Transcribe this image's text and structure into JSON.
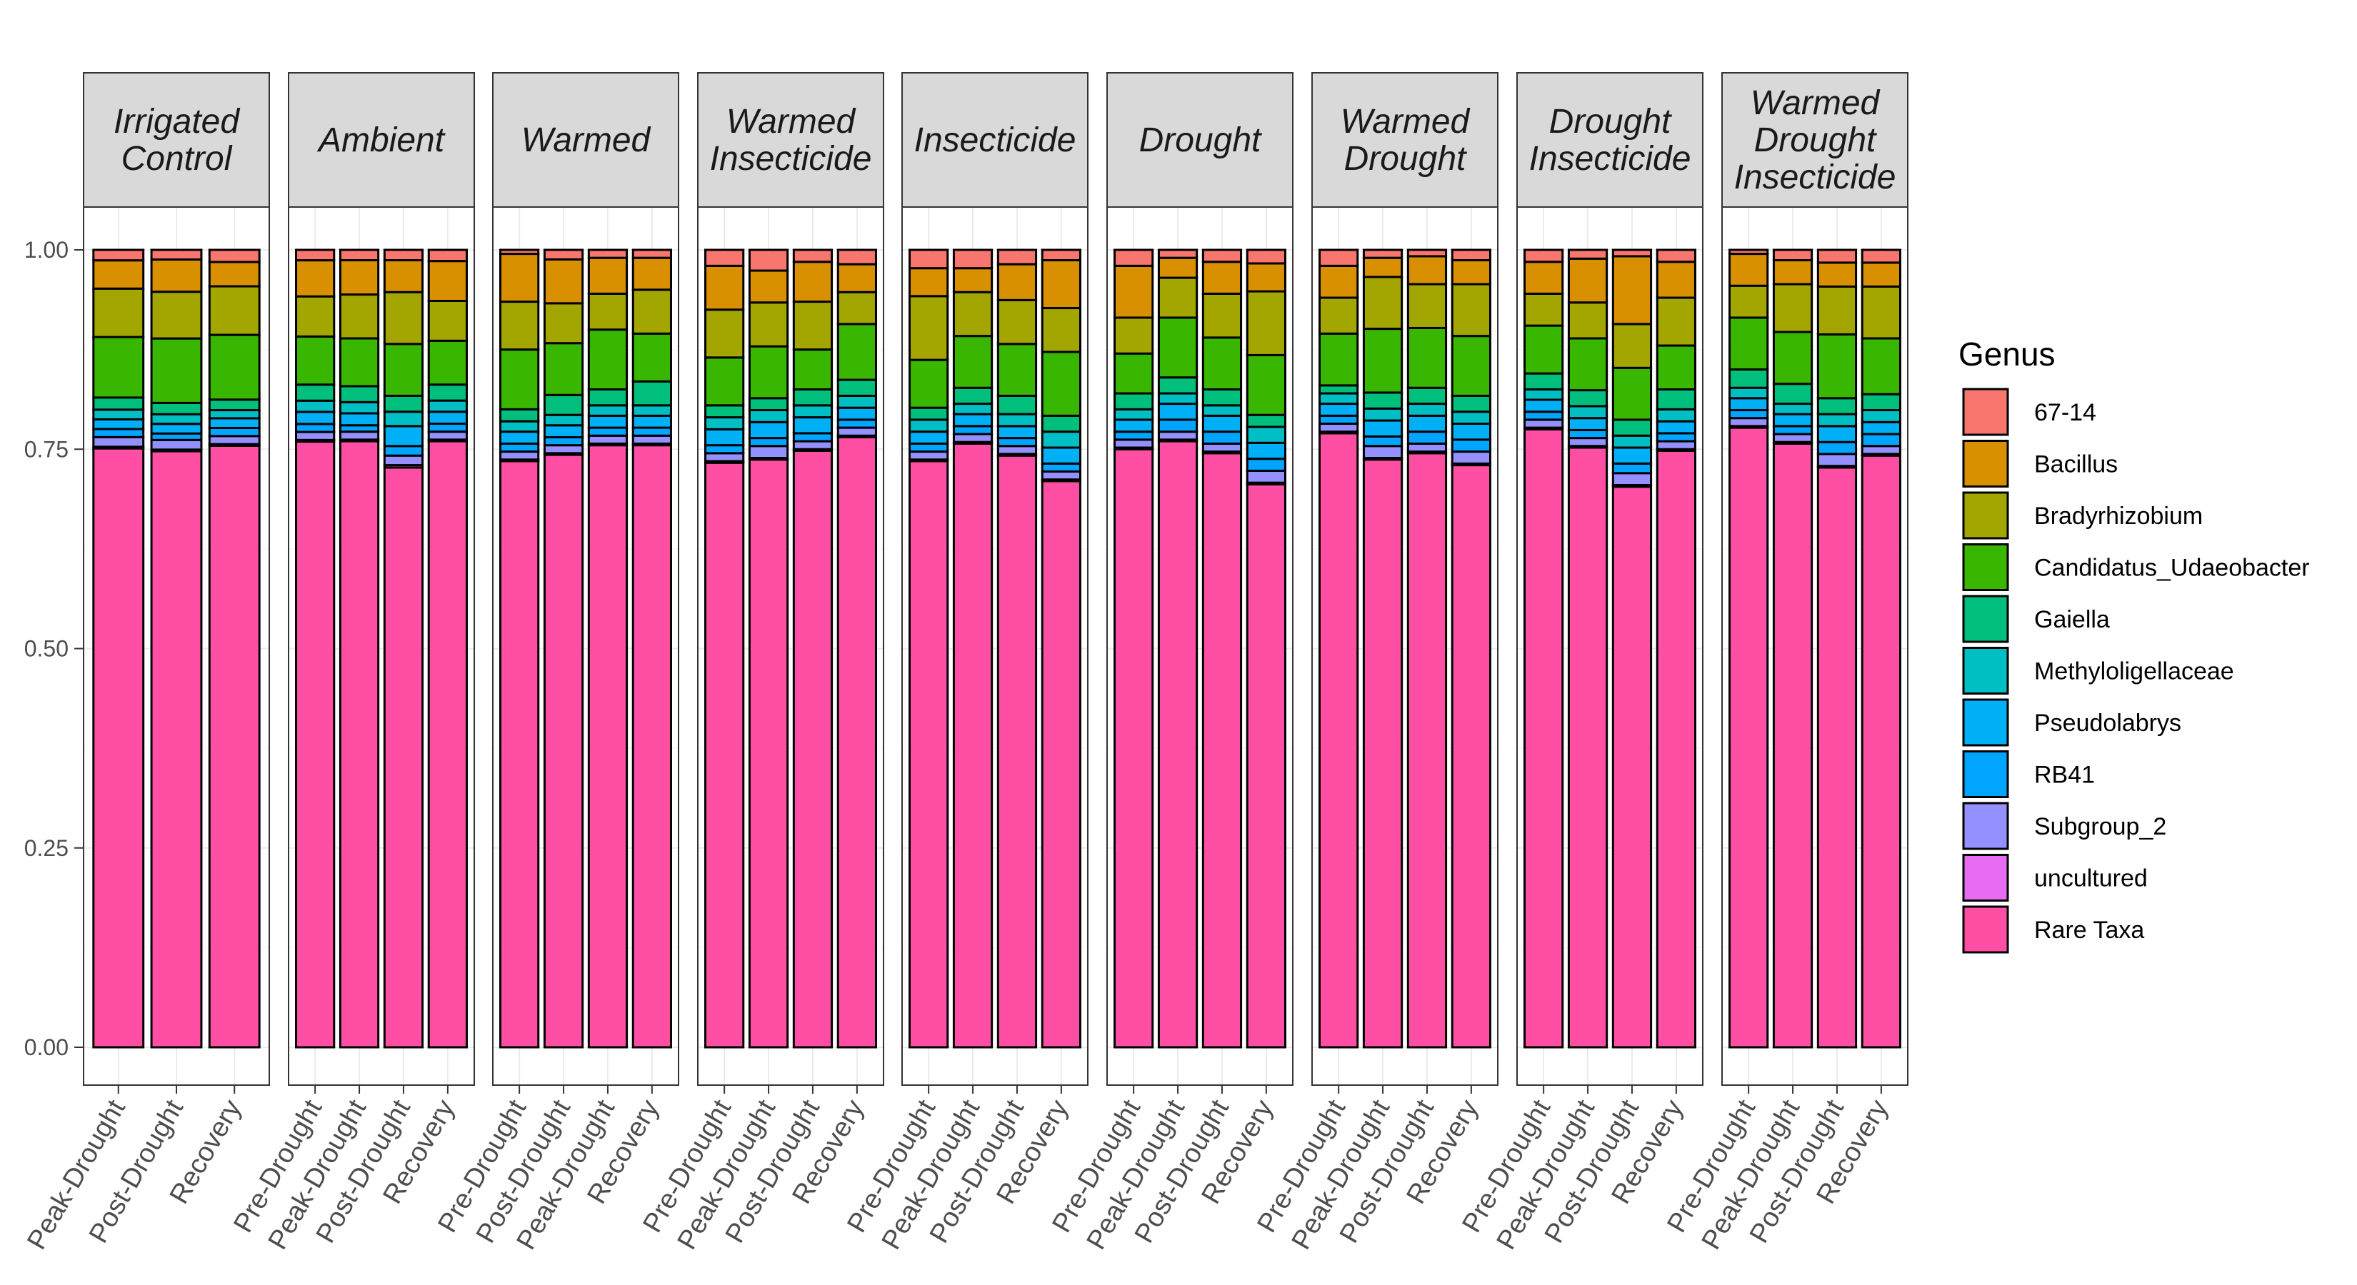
{
  "chart_data": {
    "type": "bar",
    "stacked": true,
    "ylim": [
      0,
      1
    ],
    "y_ticks": [
      "0.00",
      "0.25",
      "0.50",
      "0.75",
      "1.00"
    ],
    "grid": true,
    "legend": {
      "title": "Genus",
      "position": "right",
      "entries": [
        {
          "name": "67-14",
          "color": "#F8766D"
        },
        {
          "name": "Bacillus",
          "color": "#D89000"
        },
        {
          "name": "Bradyrhizobium",
          "color": "#A3A500"
        },
        {
          "name": "Candidatus_Udaeobacter",
          "color": "#39B600"
        },
        {
          "name": "Gaiella",
          "color": "#00BF7D"
        },
        {
          "name": "Methyloligellaceae",
          "color": "#00BFC4"
        },
        {
          "name": "Pseudolabrys",
          "color": "#00B0F6"
        },
        {
          "name": "RB41",
          "color": "#00A5FF"
        },
        {
          "name": "Subgroup_2",
          "color": "#9590FF"
        },
        {
          "name": "uncultured",
          "color": "#E76BF3"
        },
        {
          "name": "Rare Taxa",
          "color": "#FF4FA5"
        }
      ]
    },
    "stack_order_bottom_to_top": [
      "Rare Taxa",
      "uncultured",
      "Subgroup_2",
      "RB41",
      "Pseudolabrys",
      "Methyloligellaceae",
      "Gaiella",
      "Candidatus_Udaeobacter",
      "Bradyrhizobium",
      "Bacillus",
      "67-14"
    ],
    "facets": [
      {
        "label": [
          "Irrigated",
          "Control"
        ],
        "bars": [
          {
            "x": "Peak-Drought",
            "values": [
              0.742,
              0.002,
              0.012,
              0.01,
              0.012,
              0.012,
              0.015,
              0.075,
              0.06,
              0.035,
              0.013
            ]
          },
          {
            "x": "Post-Drought",
            "values": [
              0.74,
              0.002,
              0.012,
              0.008,
              0.012,
              0.012,
              0.014,
              0.08,
              0.058,
              0.04,
              0.012
            ]
          },
          {
            "x": "Recovery",
            "values": [
              0.743,
              0.002,
              0.01,
              0.01,
              0.012,
              0.01,
              0.013,
              0.08,
              0.06,
              0.03,
              0.015
            ]
          }
        ]
      },
      {
        "label": [
          "Ambient"
        ],
        "bars": [
          {
            "x": "Pre-Drought",
            "values": [
              0.755,
              0.002,
              0.01,
              0.01,
              0.015,
              0.014,
              0.02,
              0.06,
              0.05,
              0.045,
              0.013
            ]
          },
          {
            "x": "Peak-Drought",
            "values": [
              0.76,
              0.002,
              0.01,
              0.008,
              0.015,
              0.014,
              0.02,
              0.06,
              0.055,
              0.043,
              0.013
            ]
          },
          {
            "x": "Post-Drought",
            "values": [
              0.727,
              0.003,
              0.012,
              0.012,
              0.025,
              0.018,
              0.02,
              0.065,
              0.065,
              0.04,
              0.013
            ]
          },
          {
            "x": "Recovery",
            "values": [
              0.76,
              0.002,
              0.01,
              0.01,
              0.015,
              0.014,
              0.02,
              0.055,
              0.05,
              0.05,
              0.014
            ]
          }
        ]
      },
      {
        "label": [
          "Warmed"
        ],
        "bars": [
          {
            "x": "Pre-Drought",
            "values": [
              0.735,
              0.002,
              0.01,
              0.01,
              0.015,
              0.013,
              0.015,
              0.075,
              0.06,
              0.06,
              0.005
            ]
          },
          {
            "x": "Post-Drought",
            "values": [
              0.743,
              0.002,
              0.01,
              0.01,
              0.015,
              0.013,
              0.025,
              0.065,
              0.05,
              0.055,
              0.012
            ]
          },
          {
            "x": "Peak-Drought",
            "values": [
              0.755,
              0.002,
              0.01,
              0.01,
              0.015,
              0.013,
              0.02,
              0.075,
              0.045,
              0.045,
              0.01
            ]
          },
          {
            "x": "Recovery",
            "values": [
              0.755,
              0.002,
              0.01,
              0.01,
              0.015,
              0.013,
              0.03,
              0.06,
              0.055,
              0.04,
              0.01
            ]
          }
        ]
      },
      {
        "label": [
          "Warmed",
          "Insecticide"
        ],
        "bars": [
          {
            "x": "Pre-Drought",
            "values": [
              0.733,
              0.002,
              0.01,
              0.01,
              0.02,
              0.015,
              0.015,
              0.06,
              0.06,
              0.055,
              0.02
            ]
          },
          {
            "x": "Peak-Drought",
            "values": [
              0.737,
              0.002,
              0.015,
              0.01,
              0.02,
              0.015,
              0.015,
              0.065,
              0.055,
              0.04,
              0.026
            ]
          },
          {
            "x": "Post-Drought",
            "values": [
              0.748,
              0.002,
              0.01,
              0.01,
              0.02,
              0.015,
              0.02,
              0.05,
              0.06,
              0.05,
              0.015
            ]
          },
          {
            "x": "Recovery",
            "values": [
              0.765,
              0.002,
              0.01,
              0.01,
              0.015,
              0.015,
              0.02,
              0.07,
              0.04,
              0.035,
              0.018
            ]
          }
        ]
      },
      {
        "label": [
          "Insecticide"
        ],
        "bars": [
          {
            "x": "Pre-Drought",
            "values": [
              0.735,
              0.002,
              0.01,
              0.01,
              0.015,
              0.015,
              0.015,
              0.06,
              0.08,
              0.035,
              0.023
            ]
          },
          {
            "x": "Peak-Drought",
            "values": [
              0.757,
              0.002,
              0.01,
              0.01,
              0.015,
              0.013,
              0.02,
              0.065,
              0.055,
              0.03,
              0.023
            ]
          },
          {
            "x": "Post-Drought",
            "values": [
              0.742,
              0.002,
              0.01,
              0.01,
              0.015,
              0.015,
              0.023,
              0.065,
              0.055,
              0.045,
              0.018
            ]
          },
          {
            "x": "Recovery",
            "values": [
              0.71,
              0.002,
              0.01,
              0.01,
              0.02,
              0.02,
              0.02,
              0.08,
              0.055,
              0.06,
              0.013
            ]
          }
        ]
      },
      {
        "label": [
          "Drought"
        ],
        "bars": [
          {
            "x": "Pre-Drought",
            "values": [
              0.75,
              0.002,
              0.01,
              0.01,
              0.015,
              0.013,
              0.02,
              0.05,
              0.045,
              0.065,
              0.02
            ]
          },
          {
            "x": "Peak-Drought",
            "values": [
              0.76,
              0.002,
              0.01,
              0.015,
              0.02,
              0.013,
              0.02,
              0.075,
              0.05,
              0.025,
              0.01
            ]
          },
          {
            "x": "Post-Drought",
            "values": [
              0.745,
              0.002,
              0.01,
              0.015,
              0.02,
              0.013,
              0.02,
              0.065,
              0.055,
              0.04,
              0.015
            ]
          },
          {
            "x": "Recovery",
            "values": [
              0.706,
              0.002,
              0.015,
              0.015,
              0.02,
              0.02,
              0.015,
              0.075,
              0.08,
              0.035,
              0.017
            ]
          }
        ]
      },
      {
        "label": [
          "Warmed",
          "Drought"
        ],
        "bars": [
          {
            "x": "Pre-Drought",
            "values": [
              0.77,
              0.002,
              0.01,
              0.01,
              0.015,
              0.013,
              0.01,
              0.065,
              0.045,
              0.04,
              0.02
            ]
          },
          {
            "x": "Peak-Drought",
            "values": [
              0.737,
              0.002,
              0.015,
              0.012,
              0.02,
              0.015,
              0.02,
              0.08,
              0.065,
              0.024,
              0.01
            ]
          },
          {
            "x": "Post-Drought",
            "values": [
              0.745,
              0.002,
              0.01,
              0.015,
              0.02,
              0.015,
              0.02,
              0.075,
              0.055,
              0.035,
              0.008
            ]
          },
          {
            "x": "Recovery",
            "values": [
              0.73,
              0.002,
              0.015,
              0.015,
              0.02,
              0.015,
              0.02,
              0.075,
              0.065,
              0.03,
              0.013
            ]
          }
        ]
      },
      {
        "label": [
          "Drought",
          "Insecticide"
        ],
        "bars": [
          {
            "x": "Pre-Drought",
            "values": [
              0.775,
              0.002,
              0.01,
              0.01,
              0.015,
              0.013,
              0.02,
              0.06,
              0.04,
              0.04,
              0.015
            ]
          },
          {
            "x": "Peak-Drought",
            "values": [
              0.752,
              0.002,
              0.01,
              0.01,
              0.015,
              0.015,
              0.02,
              0.065,
              0.045,
              0.055,
              0.011
            ]
          },
          {
            "x": "Post-Drought",
            "values": [
              0.703,
              0.002,
              0.015,
              0.012,
              0.02,
              0.015,
              0.02,
              0.065,
              0.055,
              0.085,
              0.008
            ]
          },
          {
            "x": "Recovery",
            "values": [
              0.748,
              0.002,
              0.01,
              0.01,
              0.015,
              0.015,
              0.025,
              0.055,
              0.06,
              0.045,
              0.015
            ]
          }
        ]
      },
      {
        "label": [
          "Warmed",
          "Drought",
          "Insecticide"
        ],
        "bars": [
          {
            "x": "Pre-Drought",
            "values": [
              0.777,
              0.002,
              0.01,
              0.01,
              0.015,
              0.013,
              0.023,
              0.065,
              0.04,
              0.04,
              0.005
            ]
          },
          {
            "x": "Peak-Drought",
            "values": [
              0.757,
              0.002,
              0.01,
              0.01,
              0.015,
              0.013,
              0.025,
              0.065,
              0.06,
              0.03,
              0.013
            ]
          },
          {
            "x": "Post-Drought",
            "values": [
              0.727,
              0.002,
              0.015,
              0.015,
              0.02,
              0.015,
              0.02,
              0.08,
              0.06,
              0.03,
              0.016
            ]
          },
          {
            "x": "Recovery",
            "values": [
              0.742,
              0.002,
              0.01,
              0.015,
              0.015,
              0.015,
              0.02,
              0.07,
              0.065,
              0.03,
              0.016
            ]
          }
        ]
      }
    ]
  }
}
